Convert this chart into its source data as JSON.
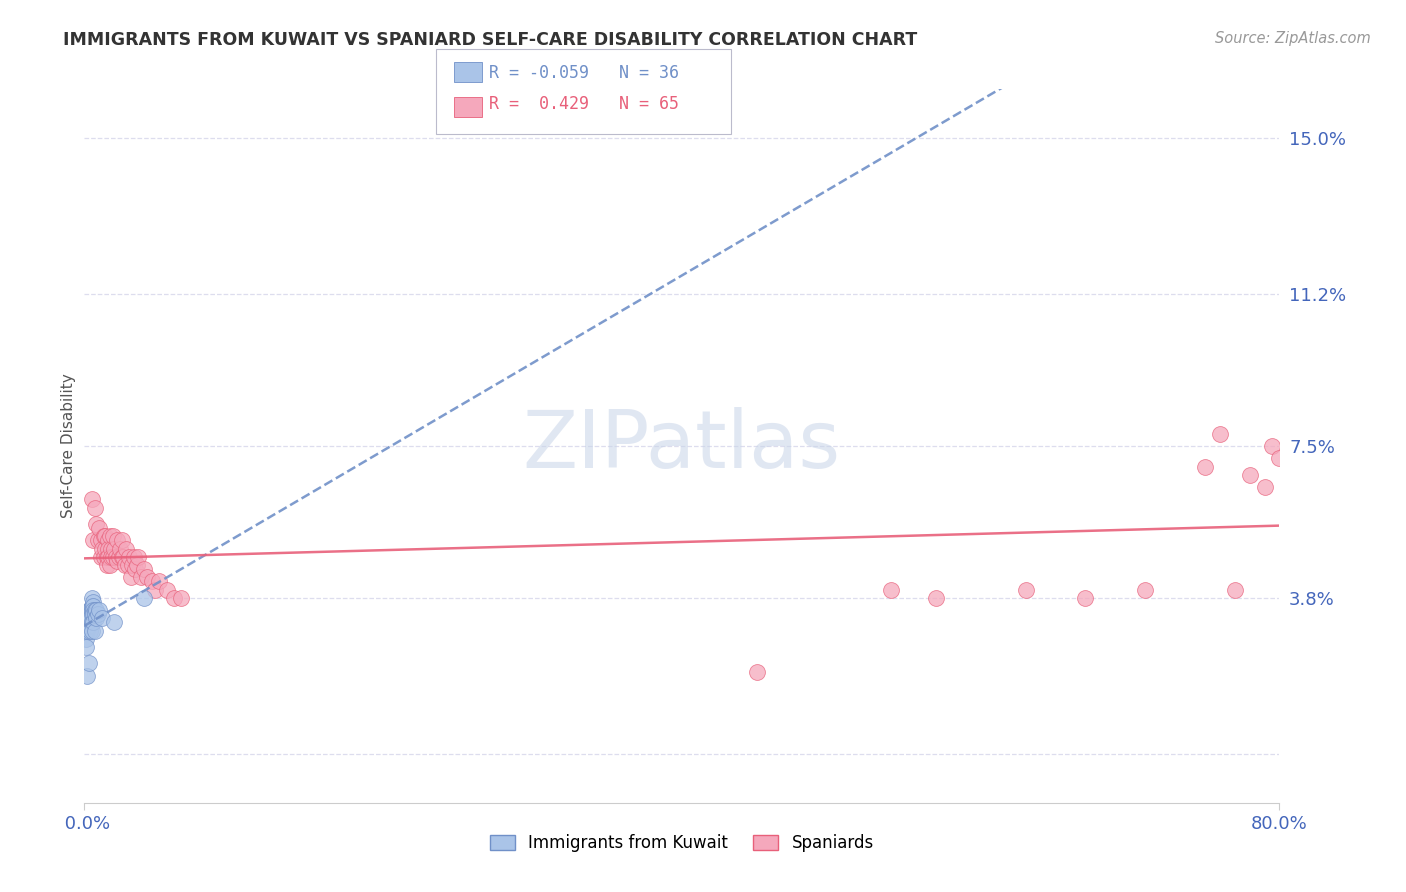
{
  "title": "IMMIGRANTS FROM KUWAIT VS SPANIARD SELF-CARE DISABILITY CORRELATION CHART",
  "source": "Source: ZipAtlas.com",
  "ylabel": "Self-Care Disability",
  "ytick_labels": [
    "",
    "3.8%",
    "7.5%",
    "11.2%",
    "15.0%"
  ],
  "yticks": [
    0.0,
    0.038,
    0.075,
    0.112,
    0.15
  ],
  "xlim": [
    0.0,
    0.8
  ],
  "ylim": [
    -0.012,
    0.162
  ],
  "color_kuwait": "#aac4e8",
  "color_spaniard": "#f5a8bc",
  "line_color_kuwait": "#7090c8",
  "line_color_spaniard": "#e8607a",
  "background_color": "#ffffff",
  "grid_color": "#ddddee",
  "title_color": "#333333",
  "axis_label_color": "#4466bb",
  "source_color": "#999999",
  "kuwait_x": [
    0.001,
    0.001,
    0.001,
    0.002,
    0.002,
    0.002,
    0.002,
    0.003,
    0.003,
    0.003,
    0.003,
    0.004,
    0.004,
    0.004,
    0.004,
    0.005,
    0.005,
    0.005,
    0.005,
    0.005,
    0.005,
    0.006,
    0.006,
    0.006,
    0.006,
    0.006,
    0.007,
    0.007,
    0.007,
    0.008,
    0.008,
    0.009,
    0.01,
    0.012,
    0.02,
    0.04
  ],
  "kuwait_y": [
    0.03,
    0.028,
    0.026,
    0.034,
    0.032,
    0.03,
    0.019,
    0.035,
    0.033,
    0.031,
    0.022,
    0.035,
    0.034,
    0.033,
    0.03,
    0.038,
    0.036,
    0.035,
    0.034,
    0.032,
    0.03,
    0.037,
    0.036,
    0.035,
    0.034,
    0.032,
    0.035,
    0.034,
    0.03,
    0.035,
    0.033,
    0.034,
    0.035,
    0.033,
    0.032,
    0.038
  ],
  "spaniard_x": [
    0.005,
    0.006,
    0.007,
    0.008,
    0.009,
    0.01,
    0.011,
    0.011,
    0.012,
    0.013,
    0.013,
    0.014,
    0.014,
    0.015,
    0.015,
    0.016,
    0.016,
    0.016,
    0.017,
    0.017,
    0.018,
    0.018,
    0.019,
    0.019,
    0.02,
    0.021,
    0.022,
    0.022,
    0.023,
    0.024,
    0.025,
    0.025,
    0.026,
    0.027,
    0.028,
    0.029,
    0.03,
    0.031,
    0.032,
    0.033,
    0.034,
    0.035,
    0.036,
    0.038,
    0.04,
    0.042,
    0.045,
    0.047,
    0.05,
    0.055,
    0.06,
    0.065,
    0.45,
    0.54,
    0.57,
    0.63,
    0.67,
    0.71,
    0.75,
    0.76,
    0.77,
    0.78,
    0.79,
    0.795,
    0.8
  ],
  "spaniard_y": [
    0.062,
    0.052,
    0.06,
    0.056,
    0.052,
    0.055,
    0.048,
    0.052,
    0.05,
    0.053,
    0.048,
    0.05,
    0.053,
    0.048,
    0.046,
    0.052,
    0.05,
    0.048,
    0.053,
    0.046,
    0.05,
    0.048,
    0.048,
    0.053,
    0.05,
    0.048,
    0.047,
    0.052,
    0.048,
    0.05,
    0.048,
    0.052,
    0.048,
    0.046,
    0.05,
    0.046,
    0.048,
    0.043,
    0.046,
    0.048,
    0.045,
    0.046,
    0.048,
    0.043,
    0.045,
    0.043,
    0.042,
    0.04,
    0.042,
    0.04,
    0.038,
    0.038,
    0.02,
    0.04,
    0.038,
    0.04,
    0.038,
    0.04,
    0.07,
    0.078,
    0.04,
    0.068,
    0.065,
    0.075,
    0.072
  ],
  "watermark": "ZIPatlas",
  "watermark_color": "#c8d4e8",
  "r_kuwait": "-0.059",
  "n_kuwait": "36",
  "r_spaniard": "0.429",
  "n_spaniard": "65"
}
